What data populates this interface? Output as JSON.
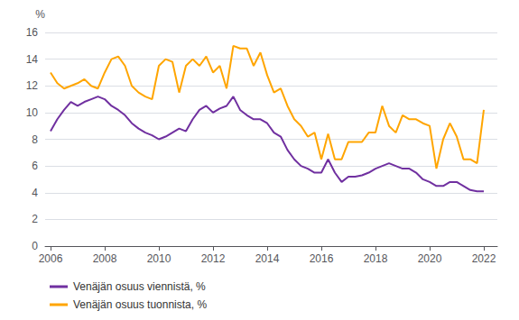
{
  "chart_data": {
    "type": "line",
    "ylabel": "%",
    "xlim": [
      2005.8,
      2022.5
    ],
    "xticks": [
      2006,
      2008,
      2010,
      2012,
      2014,
      2016,
      2018,
      2020,
      2022
    ],
    "ylim": [
      0,
      16
    ],
    "yticks": [
      0,
      2,
      4,
      6,
      8,
      10,
      12,
      14,
      16
    ],
    "grid": true,
    "legend": "lower left",
    "x": [
      2006.0,
      2006.25,
      2006.5,
      2006.75,
      2007.0,
      2007.25,
      2007.5,
      2007.75,
      2008.0,
      2008.25,
      2008.5,
      2008.75,
      2009.0,
      2009.25,
      2009.5,
      2009.75,
      2010.0,
      2010.25,
      2010.5,
      2010.75,
      2011.0,
      2011.25,
      2011.5,
      2011.75,
      2012.0,
      2012.25,
      2012.5,
      2012.75,
      2013.0,
      2013.25,
      2013.5,
      2013.75,
      2014.0,
      2014.25,
      2014.5,
      2014.75,
      2015.0,
      2015.25,
      2015.5,
      2015.75,
      2016.0,
      2016.25,
      2016.5,
      2016.75,
      2017.0,
      2017.25,
      2017.5,
      2017.75,
      2018.0,
      2018.25,
      2018.5,
      2018.75,
      2019.0,
      2019.25,
      2019.5,
      2019.75,
      2020.0,
      2020.25,
      2020.5,
      2020.75,
      2021.0,
      2021.25,
      2021.5,
      2021.75,
      2022.0
    ],
    "series": [
      {
        "name": "Venäjän osuus viennistä, %",
        "color": "#7030A0",
        "values": [
          8.6,
          9.5,
          10.2,
          10.8,
          10.5,
          10.8,
          11.0,
          11.2,
          11.0,
          10.5,
          10.2,
          9.8,
          9.2,
          8.8,
          8.5,
          8.3,
          8.0,
          8.2,
          8.5,
          8.8,
          8.6,
          9.5,
          10.2,
          10.5,
          10.0,
          10.3,
          10.5,
          11.2,
          10.2,
          9.8,
          9.5,
          9.5,
          9.2,
          8.5,
          8.2,
          7.2,
          6.5,
          6.0,
          5.8,
          5.5,
          5.5,
          6.5,
          5.5,
          4.8,
          5.2,
          5.2,
          5.3,
          5.5,
          5.8,
          6.0,
          6.2,
          6.0,
          5.8,
          5.8,
          5.5,
          5.0,
          4.8,
          4.5,
          4.5,
          4.8,
          4.8,
          4.5,
          4.2,
          4.1,
          4.1
        ]
      },
      {
        "name": "Venäjän osuus tuonnista, %",
        "color": "#FFA500",
        "values": [
          13.0,
          12.2,
          11.8,
          12.0,
          12.2,
          12.5,
          12.0,
          11.8,
          13.0,
          14.0,
          14.2,
          13.5,
          12.0,
          11.5,
          11.2,
          11.0,
          13.5,
          14.0,
          13.8,
          11.5,
          13.5,
          14.0,
          13.5,
          14.2,
          13.0,
          13.5,
          11.8,
          15.0,
          14.8,
          14.8,
          13.5,
          14.5,
          12.8,
          11.5,
          11.8,
          10.5,
          9.5,
          9.0,
          8.2,
          8.5,
          6.5,
          8.4,
          6.5,
          6.5,
          7.8,
          7.8,
          7.8,
          8.5,
          8.5,
          10.5,
          9.0,
          8.5,
          9.8,
          9.5,
          9.5,
          9.2,
          9.0,
          5.8,
          8.0,
          9.2,
          8.2,
          6.5,
          6.5,
          6.2,
          10.2
        ]
      }
    ]
  }
}
